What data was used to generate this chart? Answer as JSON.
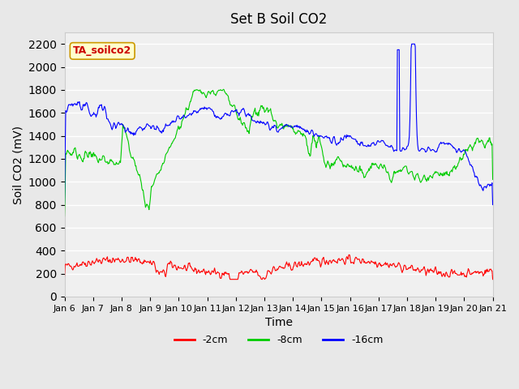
{
  "title": "Set B Soil CO2",
  "xlabel": "Time",
  "ylabel": "Soil CO2 (mV)",
  "ylim": [
    0,
    2300
  ],
  "yticks": [
    0,
    200,
    400,
    600,
    800,
    1000,
    1200,
    1400,
    1600,
    1800,
    2000,
    2200
  ],
  "bg_color": "#e8e8e8",
  "plot_bg_color": "#f0f0f0",
  "grid_color": "white",
  "colors": {
    "2cm": "#ff0000",
    "8cm": "#00cc00",
    "16cm": "#0000ff"
  },
  "legend_label": "TA_soilco2",
  "legend_bg": "#ffffcc",
  "legend_text_color": "#cc0000",
  "xticklabels": [
    "Jan 6",
    "Jan 7",
    "Jan 8",
    "Jan 9",
    "Jan 10",
    "Jan 11",
    "Jan 12",
    "Jan 13",
    "Jan 14",
    "Jan 15",
    "Jan 16",
    "Jan 17",
    "Jan 18",
    "Jan 19",
    "Jan 20",
    "Jan 21"
  ],
  "n_days": 15,
  "pts_per_day": 48
}
